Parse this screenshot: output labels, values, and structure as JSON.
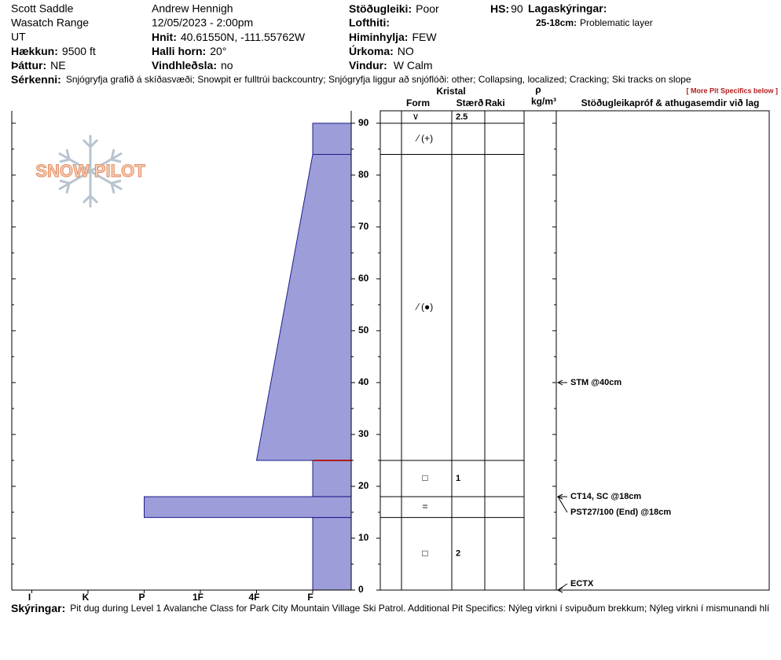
{
  "header": {
    "location": "Scott Saddle",
    "range": "Wasatch Range",
    "state": "UT",
    "observer": "Andrew Hennigh",
    "datetime": "12/05/2023 - 2:00pm",
    "elevation": {
      "label": "Hækkun:",
      "value": "9500 ft"
    },
    "aspect": {
      "label": "Þáttur:",
      "value": "NE"
    },
    "coords": {
      "label": "Hnit:",
      "value": "40.61550N, -111.55762W"
    },
    "slope": {
      "label": "Halli horn:",
      "value": "20°"
    },
    "wind_loading": {
      "label": "Vindhleðsla:",
      "value": "no"
    },
    "stability": {
      "label": "Stöðugleiki:",
      "value": "Poor"
    },
    "air_temp": {
      "label": "Lofthiti:"
    },
    "sky": {
      "label": "Himinhylja:",
      "value": "FEW"
    },
    "precip": {
      "label": "Úrkoma:",
      "value": "NO"
    },
    "wind": {
      "label": "Vindur:",
      "value": "W Calm"
    },
    "hs": {
      "label": "HS:",
      "value": "90"
    },
    "layer_notes": {
      "label": "Lagaskýringar:",
      "range": "25-18cm:",
      "text": "Problematic layer"
    },
    "features": {
      "label": "Sérkenni:",
      "value": "Snjógryfja grafið á skíðasvæði;  Snowpit er fulltrúi backcountry;  Snjógryfja liggur að snjóflóði: other;  Collapsing, localized;  Cracking;  Ski tracks on slope"
    }
  },
  "logo": "SNOW PILOT",
  "chart_data": {
    "type": "snow-profile",
    "ylim": [
      0,
      92.4
    ],
    "yticks": [
      0,
      10,
      20,
      30,
      40,
      50,
      60,
      70,
      80,
      90
    ],
    "minor_yticks": [
      5,
      15,
      25,
      35,
      45,
      55,
      65,
      75,
      85
    ],
    "hardness_categories": [
      "I",
      "K",
      "P",
      "1F",
      "4F",
      "F"
    ],
    "fill": "#9d9dd9",
    "stroke": "#1c1c8c",
    "columns": {
      "crystal": "Kristal",
      "form": "Form",
      "size": "Stærð",
      "moisture": "Raki",
      "density_symbol": "ρ",
      "density_unit": "kg/m³",
      "tests": "Stöðugleikapróf & athugasemdir við lag",
      "more": "[ More Pit Specifics below ]"
    },
    "surface": {
      "form": "∨",
      "size": 2.5
    },
    "layers": [
      {
        "top": 90,
        "bottom": 84,
        "hardness_top": "F",
        "hardness_bottom": "F",
        "form": "⁄ (+)"
      },
      {
        "top": 84,
        "bottom": 25,
        "hardness_top": "F",
        "hardness_bottom": "4F",
        "form": "⁄ (●)"
      },
      {
        "top": 25,
        "bottom": 18,
        "hardness_top": "F",
        "hardness_bottom": "F",
        "form": "□",
        "size": 1
      },
      {
        "top": 18,
        "bottom": 14,
        "hardness_top": "P",
        "hardness_bottom": "P",
        "form": "="
      },
      {
        "top": 14,
        "bottom": 0,
        "hardness_top": "F",
        "hardness_bottom": "F",
        "form": "□",
        "size": 2
      }
    ],
    "problem_layer": {
      "top": 25,
      "bottom": 18,
      "color": "#b01c1c"
    },
    "tests": [
      {
        "depth": 40,
        "label": "STM @40cm"
      },
      {
        "depth": 18,
        "label": "CT14, SC @18cm"
      },
      {
        "depth": 18,
        "label": "PST27/100 (End) @18cm"
      },
      {
        "depth": 0,
        "label": "ECTX"
      }
    ]
  },
  "footer": {
    "label": "Skýringar:",
    "text": "Pit dug during Level 1 Avalanche Class for Park City Mountain Village Ski Patrol. Additional Pit Specifics: Nýleg virkni í svipuðum brekkum; Nýleg virkni í mismunandi hlí"
  }
}
